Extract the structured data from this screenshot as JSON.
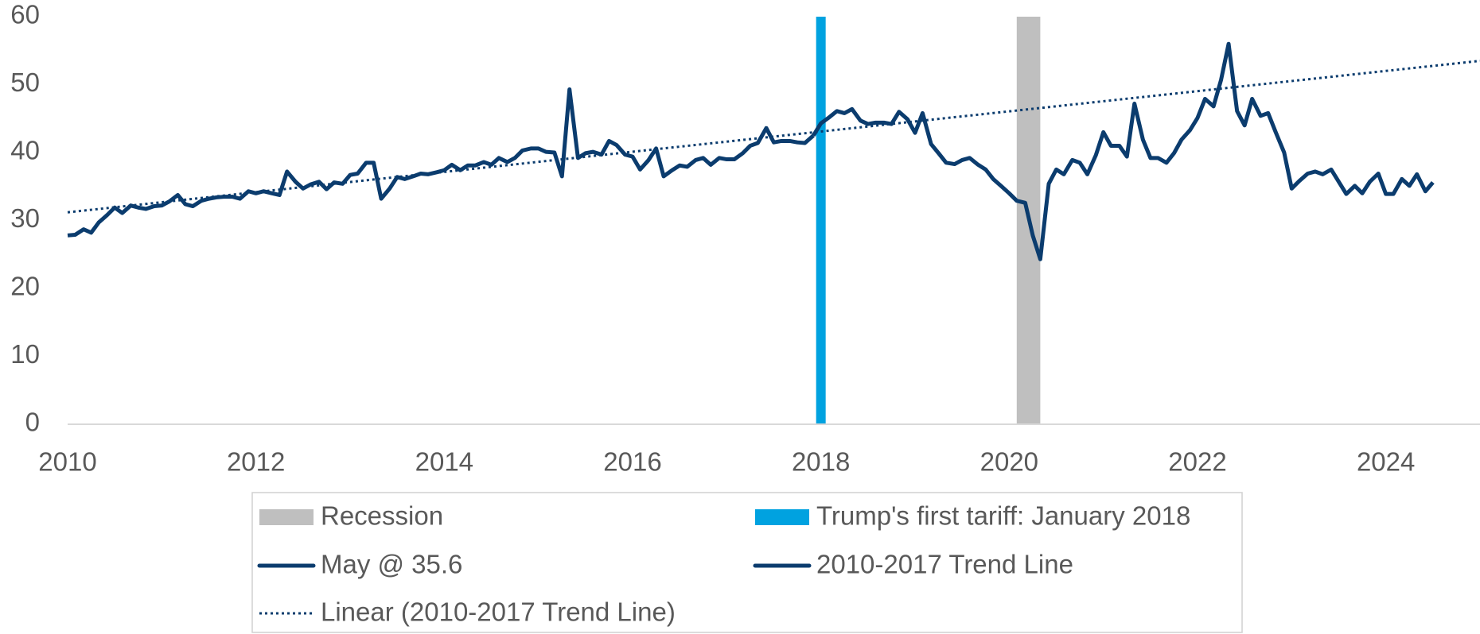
{
  "chart_data": {
    "type": "line",
    "xlim": [
      2010,
      2025
    ],
    "xticks": [
      2010,
      2012,
      2014,
      2016,
      2018,
      2020,
      2022,
      2024
    ],
    "ylim": [
      0,
      60
    ],
    "yticks": [
      0,
      10,
      20,
      30,
      40,
      50,
      60
    ],
    "grid": false,
    "legend": "bottom",
    "bands": [
      {
        "name": "Recession",
        "color": "#bfbfbf",
        "x": [
          2020.08,
          2020.33
        ]
      }
    ],
    "vlines": [
      {
        "name": "Trump's first tariff: January 2018",
        "color": "#00a2e0",
        "x": 2018.0
      }
    ],
    "series": [
      {
        "name": "May @ 35.6",
        "color": "#0b3c6e",
        "x": [
          2017.92,
          2018.0,
          2018.08,
          2018.17,
          2018.25,
          2018.33,
          2018.42,
          2018.5,
          2018.58,
          2018.67,
          2018.75,
          2018.83,
          2018.92,
          2019.0,
          2019.08,
          2019.17,
          2019.25,
          2019.33,
          2019.42,
          2019.5,
          2019.58,
          2019.67,
          2019.75,
          2019.83,
          2019.92,
          2020.0,
          2020.08,
          2020.17,
          2020.25,
          2020.33,
          2020.42,
          2020.5,
          2020.58,
          2020.67,
          2020.75,
          2020.83,
          2020.92,
          2021.0,
          2021.08,
          2021.17,
          2021.25,
          2021.33,
          2021.42,
          2021.5,
          2021.58,
          2021.67,
          2021.75,
          2021.83,
          2021.92,
          2022.0,
          2022.08,
          2022.17,
          2022.25,
          2022.33,
          2022.42,
          2022.5,
          2022.58,
          2022.67,
          2022.75,
          2022.83,
          2022.92,
          2023.0,
          2023.08,
          2023.17,
          2023.25,
          2023.33,
          2023.42,
          2023.5,
          2023.58,
          2023.67,
          2023.75,
          2023.83,
          2023.92,
          2024.0,
          2024.08,
          2024.17,
          2024.25,
          2024.33,
          2024.42,
          2024.5
        ],
        "values": [
          42.5,
          44.3,
          45.1,
          46.1,
          45.8,
          46.4,
          44.7,
          44.2,
          44.4,
          44.4,
          44.2,
          46,
          44.9,
          42.9,
          45.8,
          41.25,
          39.9,
          38.5,
          38.3,
          38.9,
          39.2,
          38.2,
          37.5,
          36.1,
          35,
          34,
          32.9,
          32.6,
          27.8,
          24.3,
          35.4,
          37.5,
          36.8,
          38.9,
          38.5,
          36.8,
          39.6,
          43,
          41,
          41,
          39.4,
          47.2,
          41.9,
          39.2,
          39.2,
          38.5,
          39.9,
          41.9,
          43.3,
          45.1,
          47.9,
          46.8,
          50.7,
          56,
          46.1,
          44,
          47.9,
          45.4,
          45.8,
          43,
          40,
          34.7,
          35.8,
          36.9,
          37.2,
          36.8,
          37.5,
          35.7,
          33.9,
          35.1,
          34,
          35.7,
          36.9,
          33.9,
          33.9,
          36.1,
          35.1,
          36.8,
          34.3,
          35.6
        ]
      },
      {
        "name": "2010-2017 Trend Line",
        "color": "#0b3c6e",
        "x": [
          2010.0,
          2010.08,
          2010.17,
          2010.25,
          2010.33,
          2010.42,
          2010.5,
          2010.58,
          2010.67,
          2010.75,
          2010.83,
          2010.92,
          2011.0,
          2011.08,
          2011.17,
          2011.25,
          2011.33,
          2011.42,
          2011.5,
          2011.58,
          2011.67,
          2011.75,
          2011.83,
          2011.92,
          2012.0,
          2012.08,
          2012.17,
          2012.25,
          2012.33,
          2012.42,
          2012.5,
          2012.58,
          2012.67,
          2012.75,
          2012.83,
          2012.92,
          2013.0,
          2013.08,
          2013.17,
          2013.25,
          2013.33,
          2013.42,
          2013.5,
          2013.58,
          2013.67,
          2013.75,
          2013.83,
          2013.92,
          2014.0,
          2014.08,
          2014.17,
          2014.25,
          2014.33,
          2014.42,
          2014.5,
          2014.58,
          2014.67,
          2014.75,
          2014.83,
          2014.92,
          2015.0,
          2015.08,
          2015.17,
          2015.25,
          2015.33,
          2015.42,
          2015.5,
          2015.58,
          2015.67,
          2015.75,
          2015.83,
          2015.92,
          2016.0,
          2016.08,
          2016.17,
          2016.25,
          2016.33,
          2016.42,
          2016.5,
          2016.58,
          2016.67,
          2016.75,
          2016.83,
          2016.92,
          2017.0,
          2017.08,
          2017.17,
          2017.25,
          2017.33,
          2017.42,
          2017.5,
          2017.58,
          2017.67,
          2017.75,
          2017.83,
          2017.92
        ],
        "values": [
          27.8,
          27.9,
          28.7,
          28.2,
          29.7,
          30.8,
          31.9,
          31.1,
          32.2,
          31.9,
          31.7,
          32.1,
          32.2,
          32.8,
          33.75,
          32.4,
          32.1,
          32.9,
          33.2,
          33.4,
          33.5,
          33.5,
          33.2,
          34.3,
          34,
          34.3,
          34,
          33.75,
          37.2,
          35.7,
          34.7,
          35.3,
          35.7,
          34.6,
          35.6,
          35.4,
          36.7,
          36.9,
          38.5,
          38.5,
          33.2,
          34.7,
          36.4,
          36.1,
          36.5,
          36.9,
          36.8,
          37.1,
          37.4,
          38.2,
          37.4,
          38.1,
          38.1,
          38.6,
          38.2,
          39.2,
          38.6,
          39.2,
          40.3,
          40.6,
          40.6,
          40.1,
          40,
          36.5,
          49.3,
          39.2,
          39.9,
          40.1,
          39.7,
          41.7,
          41.1,
          39.7,
          39.4,
          37.5,
          38.9,
          40.6,
          36.5,
          37.4,
          38.1,
          37.9,
          38.9,
          39.2,
          38.2,
          39.2,
          39,
          39,
          39.9,
          41,
          41.4,
          43.6,
          41.5,
          41.7,
          41.7,
          41.5,
          41.4,
          42.5
        ]
      },
      {
        "name": "Linear (2010-2017 Trend Line)",
        "color": "#0b3c6e",
        "dash": "dotted",
        "x": [
          2010,
          2025
        ],
        "values": [
          31.2,
          53.5
        ]
      }
    ]
  }
}
